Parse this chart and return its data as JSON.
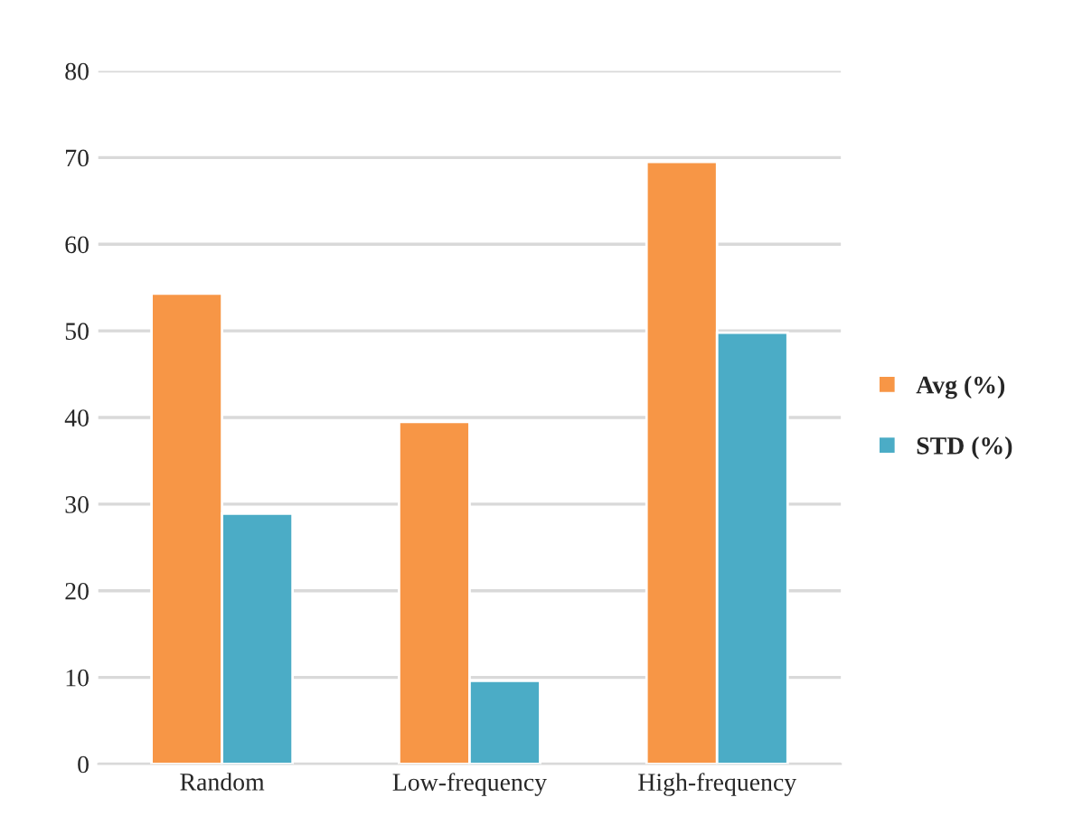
{
  "chart_data": {
    "type": "bar",
    "categories": [
      "Random",
      "Low-frequency",
      "High-frequency"
    ],
    "series": [
      {
        "name": "Avg (%)",
        "color": "#f79646",
        "values": [
          54.3,
          39.5,
          69.5
        ]
      },
      {
        "name": "STD (%)",
        "color": "#4bacc6",
        "values": [
          28.9,
          9.6,
          49.8
        ]
      }
    ],
    "ylim": [
      0,
      80
    ],
    "yticks": [
      0,
      10,
      20,
      30,
      40,
      50,
      60,
      70,
      80
    ],
    "grid": "y",
    "legend": "right"
  }
}
